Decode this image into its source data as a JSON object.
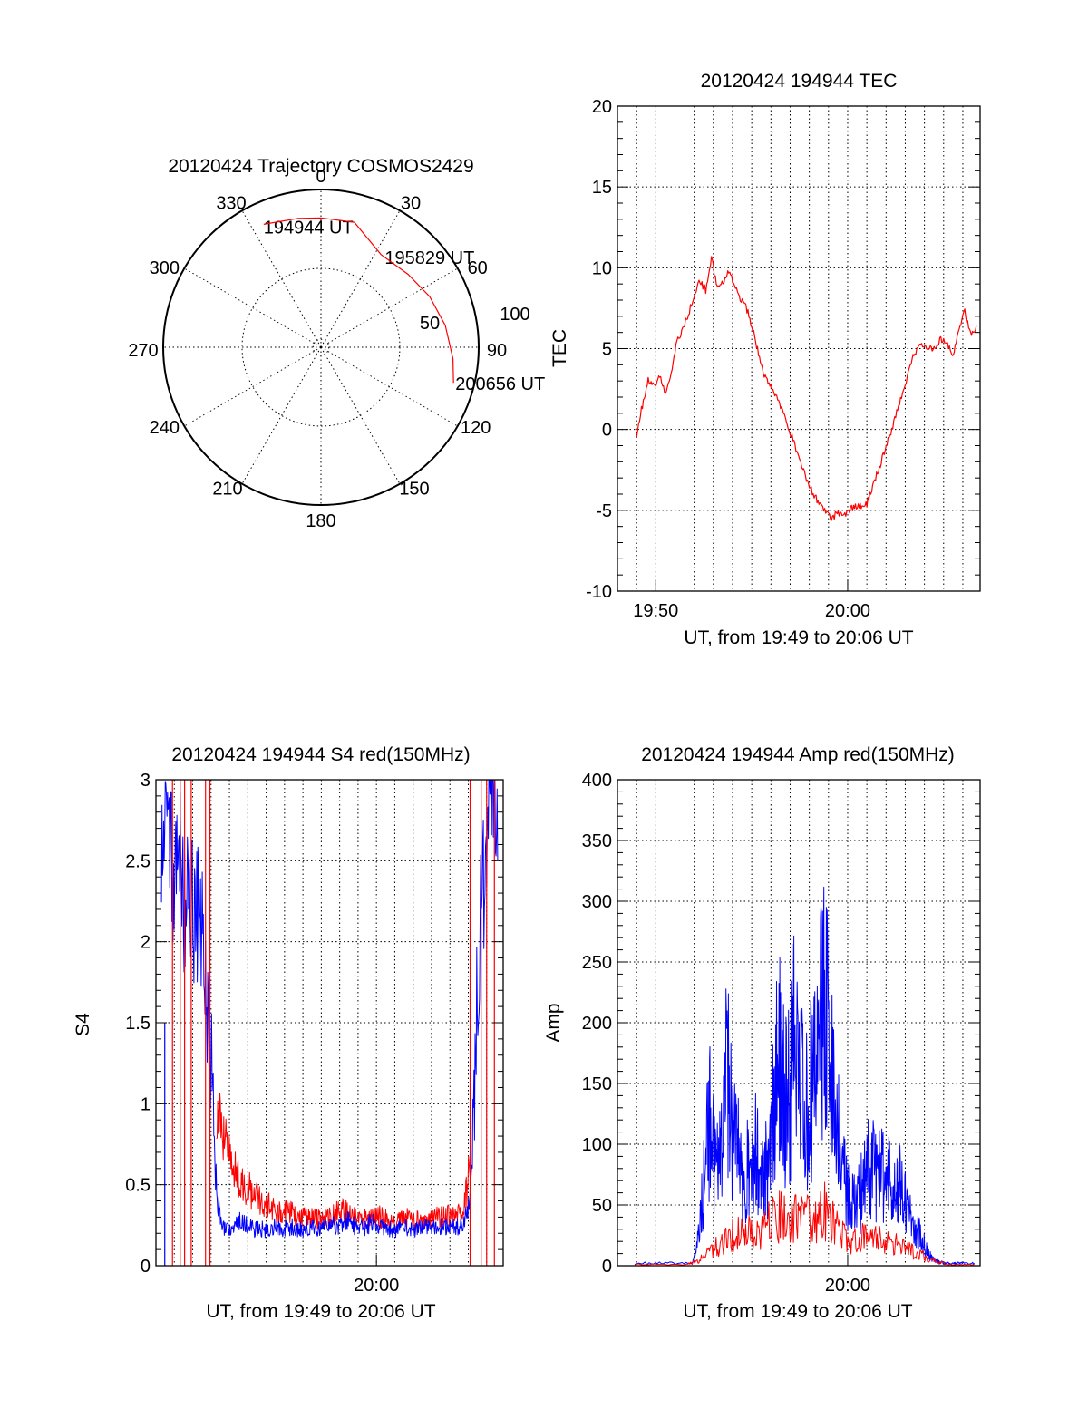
{
  "figure": {
    "colors": {
      "red": "#ff0000",
      "blue": "#0000ff",
      "axes": "#000000"
    }
  },
  "chart_data": [
    {
      "id": "trajectory",
      "type": "polar",
      "title": "20120424 Trajectory COSMOS2429",
      "azimuth_labels": [
        "0",
        "30",
        "60",
        "90",
        "120",
        "150",
        "180",
        "210",
        "240",
        "270",
        "300",
        "330"
      ],
      "ring_labels": [
        "50",
        "100"
      ],
      "rmax": 100,
      "points": [
        {
          "label": "194944 UT",
          "az": 335,
          "r": 86
        },
        {
          "label": "195829 UT",
          "az": 33,
          "r": 70
        },
        {
          "label": "200656 UT",
          "az": 105,
          "r": 87
        }
      ],
      "track": [
        [
          335,
          86
        ],
        [
          350,
          83
        ],
        [
          0,
          82
        ],
        [
          15,
          82
        ],
        [
          33,
          70
        ],
        [
          50,
          72
        ],
        [
          65,
          76
        ],
        [
          80,
          80
        ],
        [
          95,
          84
        ],
        [
          105,
          87
        ]
      ]
    },
    {
      "id": "tec",
      "type": "line",
      "title": "20120424 194944 TEC",
      "xlabel": "UT, from 19:49 to 20:06 UT",
      "ylabel": "TEC",
      "xlim": [
        19.8,
        20.115
      ],
      "ylim": [
        -10,
        20
      ],
      "yticks": [
        "-10",
        "-5",
        "0",
        "5",
        "10",
        "15",
        "20"
      ],
      "xticks": [
        {
          "label": "19:50",
          "value": 19.8333
        },
        {
          "label": "20:00",
          "value": 20.0
        }
      ],
      "series": [
        {
          "color": "#ff0000",
          "x": [
            19.8167,
            19.8217,
            19.8267,
            19.8317,
            19.8367,
            19.8417,
            19.8467,
            19.8517,
            19.8567,
            19.8617,
            19.8667,
            19.8717,
            19.8767,
            19.8817,
            19.8867,
            19.8917,
            19.8967,
            19.9017,
            19.9067,
            19.9117,
            19.9167,
            19.9217,
            19.9267,
            19.9317,
            19.9367,
            19.9417,
            19.9467,
            19.9517,
            19.9567,
            19.9617,
            19.9667,
            19.9717,
            19.9767,
            19.9817,
            19.9867,
            19.9917,
            19.9967,
            20.0017,
            20.0067,
            20.0117,
            20.0167,
            20.0217,
            20.0267,
            20.0317,
            20.0367,
            20.0417,
            20.0467,
            20.0517,
            20.0567,
            20.0617,
            20.0667,
            20.0717,
            20.0767,
            20.0817,
            20.0867,
            20.0917,
            20.0967,
            20.1017,
            20.1067,
            20.1117
          ],
          "y": [
            -0.3,
            1.5,
            3.0,
            2.6,
            3.3,
            2.2,
            3.5,
            5.4,
            6.2,
            7.2,
            8.2,
            9.2,
            8.6,
            10.6,
            8.7,
            9.1,
            9.8,
            9.0,
            8.0,
            7.6,
            6.4,
            5.0,
            3.4,
            2.8,
            2.2,
            1.5,
            0.6,
            -0.5,
            -1.5,
            -2.5,
            -3.5,
            -4.2,
            -4.6,
            -5.2,
            -5.5,
            -5.1,
            -5.3,
            -5.0,
            -4.7,
            -4.8,
            -4.6,
            -3.5,
            -2.5,
            -1.4,
            -0.3,
            0.8,
            2.0,
            3.3,
            4.6,
            5.1,
            5.3,
            5.0,
            5.2,
            5.6,
            5.2,
            4.6,
            6.2,
            7.3,
            5.9,
            6.4
          ]
        }
      ]
    },
    {
      "id": "s4",
      "type": "line",
      "title": "20120424 194944 S4 red(150MHz)",
      "xlabel": "UT, from 19:49 to 20:06 UT",
      "ylabel": "S4",
      "xlim": [
        19.8,
        20.115
      ],
      "ylim": [
        0,
        3
      ],
      "yticks": [
        "0",
        "0.5",
        "1",
        "1.5",
        "2",
        "2.5",
        "3"
      ],
      "xticks": [
        {
          "label": "20:00",
          "value": 20.0
        }
      ],
      "series": [
        {
          "color": "#ff0000",
          "x": [
            19.855,
            19.86,
            19.865,
            19.87,
            19.875,
            19.88,
            19.885,
            19.89,
            19.895,
            19.9,
            19.905,
            19.91,
            19.915,
            19.92,
            19.925,
            19.93,
            19.935,
            19.94,
            19.945,
            19.95,
            19.955,
            19.96,
            19.965,
            19.97,
            19.975,
            19.98,
            19.985,
            19.99,
            19.995,
            20.0,
            20.005,
            20.01,
            20.015,
            20.02,
            20.025,
            20.03,
            20.035,
            20.04,
            20.045,
            20.05,
            20.055,
            20.06,
            20.065,
            20.07,
            20.075,
            20.08,
            20.085
          ],
          "y": [
            0.9,
            0.75,
            0.62,
            0.55,
            0.5,
            0.46,
            0.42,
            0.4,
            0.36,
            0.34,
            0.33,
            0.3,
            0.31,
            0.3,
            0.29,
            0.28,
            0.27,
            0.27,
            0.26,
            0.26,
            0.27,
            0.28,
            0.3,
            0.31,
            0.29,
            0.28,
            0.27,
            0.26,
            0.27,
            0.28,
            0.27,
            0.26,
            0.25,
            0.26,
            0.26,
            0.27,
            0.26,
            0.25,
            0.25,
            0.26,
            0.27,
            0.27,
            0.28,
            0.29,
            0.3,
            0.35,
            0.55
          ]
        },
        {
          "color": "#0000ff",
          "x": [
            19.805,
            19.81,
            19.815,
            19.82,
            19.825,
            19.83,
            19.835,
            19.84,
            19.845,
            19.85,
            19.855,
            19.86,
            19.865,
            19.87,
            19.875,
            19.88,
            19.885,
            19.89,
            19.895,
            19.9,
            19.905,
            19.91,
            19.915,
            19.92,
            19.925,
            19.93,
            19.935,
            19.94,
            19.945,
            19.95,
            19.955,
            19.96,
            19.965,
            19.97,
            19.975,
            19.98,
            19.985,
            19.99,
            19.995,
            20.0,
            20.005,
            20.01,
            20.015,
            20.02,
            20.025,
            20.03,
            20.035,
            20.04,
            20.045,
            20.05,
            20.055,
            20.06,
            20.065,
            20.07,
            20.075,
            20.08,
            20.085,
            20.09,
            20.095,
            20.1,
            20.105,
            20.11
          ],
          "y": [
            2.4,
            2.7,
            2.2,
            2.6,
            2.0,
            2.3,
            1.9,
            2.1,
            1.5,
            1.2,
            0.4,
            0.22,
            0.2,
            0.22,
            0.25,
            0.24,
            0.22,
            0.2,
            0.21,
            0.2,
            0.22,
            0.21,
            0.2,
            0.21,
            0.22,
            0.2,
            0.21,
            0.22,
            0.2,
            0.21,
            0.22,
            0.23,
            0.22,
            0.23,
            0.27,
            0.22,
            0.21,
            0.22,
            0.24,
            0.23,
            0.22,
            0.21,
            0.2,
            0.21,
            0.22,
            0.21,
            0.2,
            0.21,
            0.22,
            0.2,
            0.21,
            0.22,
            0.21,
            0.21,
            0.22,
            0.25,
            0.4,
            1.2,
            2.0,
            2.4,
            2.6,
            2.5
          ]
        }
      ]
    },
    {
      "id": "amp",
      "type": "line",
      "title": "20120424 194944 Amp red(150MHz)",
      "xlabel": "UT, from 19:49 to 20:06 UT",
      "ylabel": "Amp",
      "xlim": [
        19.8,
        20.115
      ],
      "ylim": [
        0,
        400
      ],
      "yticks": [
        "0",
        "50",
        "100",
        "150",
        "200",
        "250",
        "300",
        "350",
        "400"
      ],
      "xticks": [
        {
          "label": "20:00",
          "value": 20.0
        }
      ],
      "series": [
        {
          "color": "#0000ff",
          "x": [
            19.815,
            19.84,
            19.865,
            19.87,
            19.875,
            19.88,
            19.885,
            19.89,
            19.895,
            19.9,
            19.905,
            19.91,
            19.915,
            19.92,
            19.925,
            19.93,
            19.935,
            19.94,
            19.945,
            19.95,
            19.955,
            19.96,
            19.965,
            19.97,
            19.975,
            19.98,
            19.985,
            19.99,
            19.995,
            20.0,
            20.005,
            20.01,
            20.015,
            20.02,
            20.025,
            20.03,
            20.035,
            20.04,
            20.045,
            20.05,
            20.055,
            20.06,
            20.065,
            20.07,
            20.075,
            20.08,
            20.085,
            20.09,
            20.095,
            20.1,
            20.11
          ],
          "y": [
            2,
            2,
            2,
            20,
            70,
            120,
            80,
            100,
            160,
            110,
            90,
            70,
            85,
            95,
            70,
            80,
            120,
            170,
            140,
            150,
            210,
            160,
            130,
            150,
            190,
            240,
            170,
            140,
            80,
            60,
            50,
            55,
            70,
            85,
            75,
            80,
            70,
            60,
            65,
            50,
            40,
            30,
            20,
            10,
            4,
            3,
            2,
            2,
            2,
            2,
            2
          ]
        },
        {
          "color": "#ff0000",
          "x": [
            19.815,
            19.86,
            19.87,
            19.88,
            19.89,
            19.9,
            19.91,
            19.92,
            19.93,
            19.94,
            19.95,
            19.96,
            19.97,
            19.98,
            19.99,
            20.0,
            20.01,
            20.02,
            20.03,
            20.04,
            20.05,
            20.06,
            20.07,
            20.08,
            20.09,
            20.11
          ],
          "y": [
            1,
            1,
            4,
            12,
            18,
            25,
            30,
            22,
            35,
            40,
            38,
            45,
            32,
            45,
            30,
            20,
            22,
            25,
            20,
            18,
            14,
            10,
            6,
            3,
            1,
            1
          ]
        }
      ]
    }
  ]
}
